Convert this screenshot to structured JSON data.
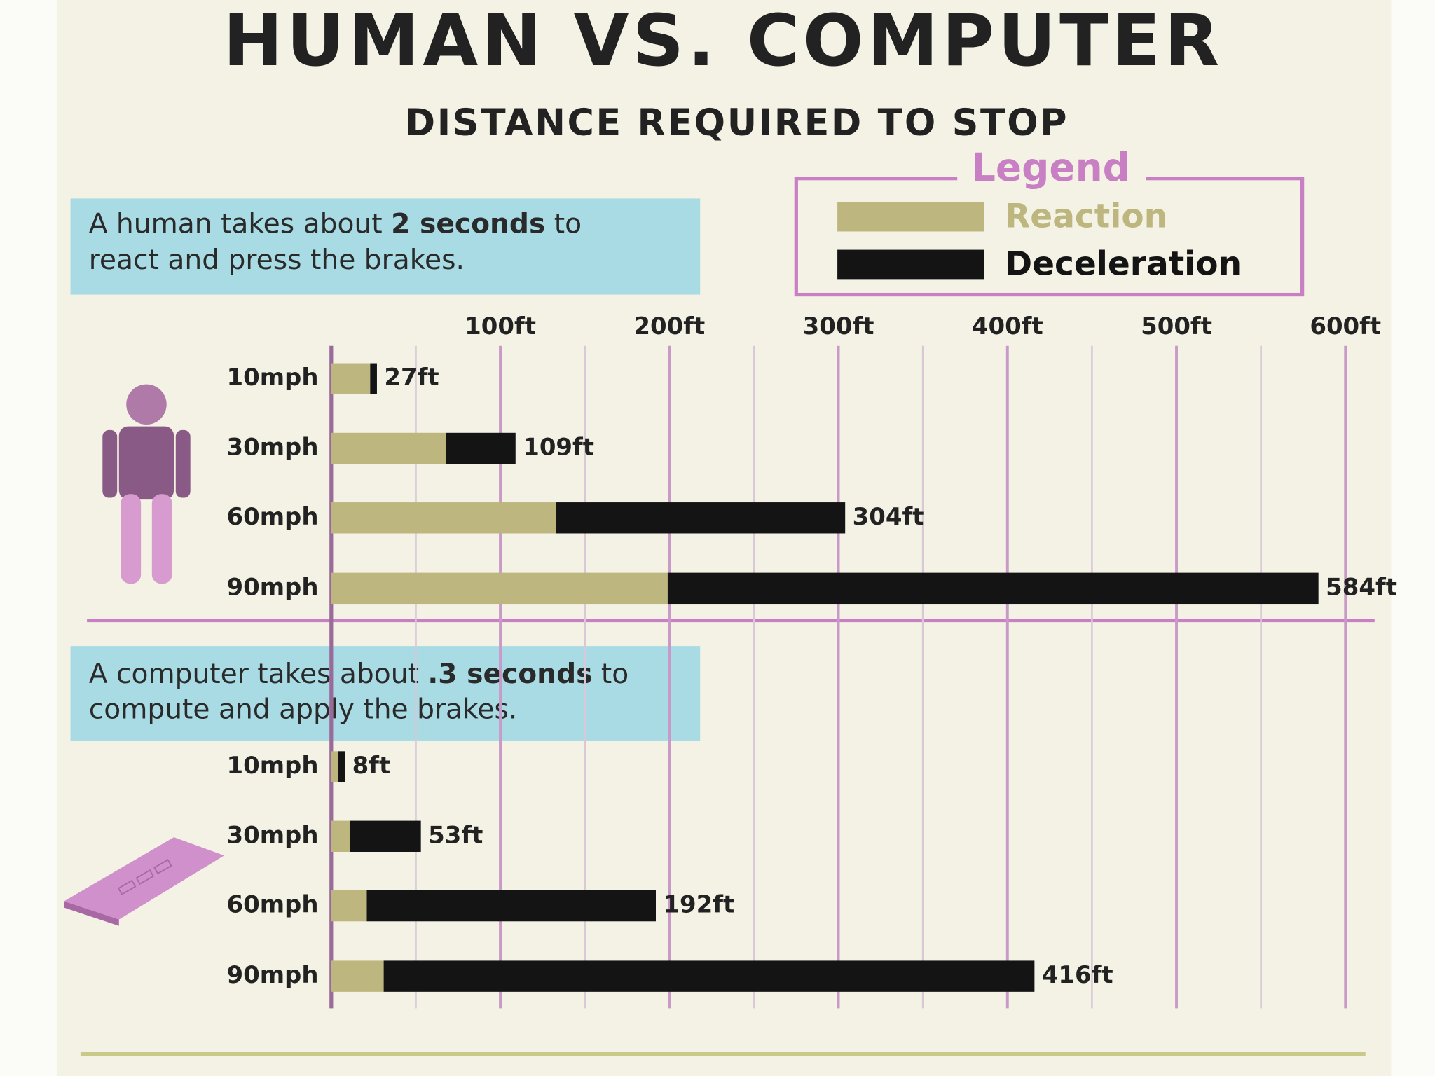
{
  "title": "HUMAN VS. COMPUTER",
  "subtitle": "DISTANCE REQUIRED TO STOP",
  "legend_title": "Legend",
  "chart_data": [
    {
      "type": "bar",
      "orientation": "horizontal",
      "stacked": true,
      "note": [
        "A human takes about",
        "2 seconds",
        "to",
        "react and press the brakes."
      ],
      "categories": [
        "10mph",
        "30mph",
        "60mph",
        "90mph"
      ],
      "series": [
        {
          "name": "Reaction",
          "color": "#bdb67e",
          "values": [
            23,
            68,
            133,
            199
          ]
        },
        {
          "name": "Deceleration",
          "color": "#141414",
          "values": [
            4,
            41,
            171,
            385
          ]
        }
      ],
      "totals": [
        27,
        109,
        304,
        584
      ],
      "total_labels": [
        "27ft",
        "109ft",
        "304ft",
        "584ft"
      ],
      "xlim": [
        0,
        616
      ],
      "xticks": [
        {
          "value": 100,
          "label": "100ft"
        },
        {
          "value": 200,
          "label": "200ft"
        },
        {
          "value": 300,
          "label": "300ft"
        },
        {
          "value": 400,
          "label": "400ft"
        },
        {
          "value": 500,
          "label": "500ft"
        },
        {
          "value": 600,
          "label": "600ft"
        }
      ],
      "minor_xticks": [
        50,
        150,
        250,
        350,
        450,
        550
      ],
      "grid": true
    },
    {
      "type": "bar",
      "orientation": "horizontal",
      "stacked": true,
      "note": [
        "A computer takes about",
        ".3 seconds",
        "to",
        "compute and apply the brakes."
      ],
      "categories": [
        "10mph",
        "30mph",
        "60mph",
        "90mph"
      ],
      "series": [
        {
          "color": "#bdb67e",
          "values": [
            4,
            11,
            21,
            31
          ]
        },
        {
          "color": "#141414",
          "values": [
            4,
            42,
            171,
            385
          ]
        }
      ],
      "totals": [
        8,
        53,
        192,
        416
      ],
      "total_labels": [
        "8ft",
        "53ft",
        "192ft",
        "416ft"
      ],
      "xlim": [
        0,
        616
      ]
    }
  ]
}
